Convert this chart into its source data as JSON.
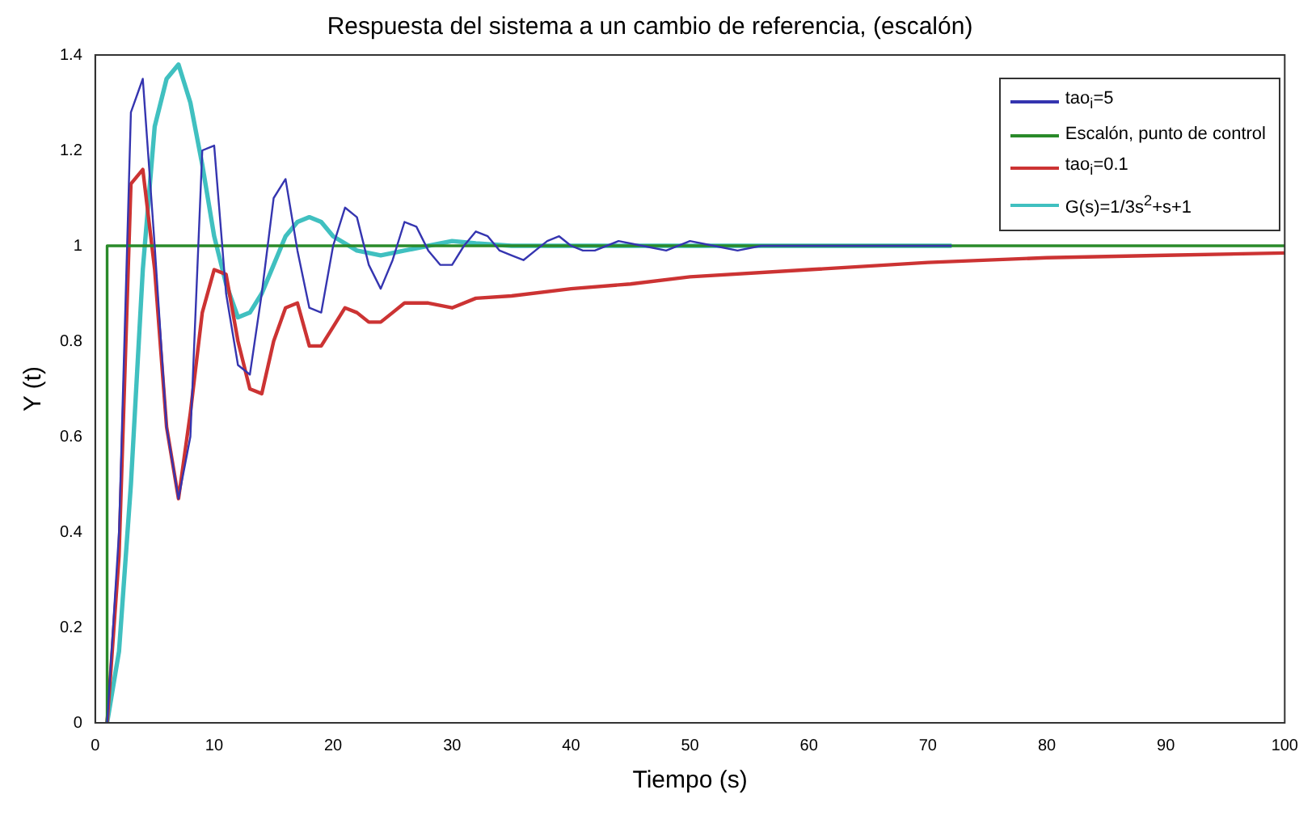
{
  "chart_data": {
    "type": "line",
    "title": "Respuesta del sistema a un cambio de referencia, (escalón)",
    "xlabel": "Tiempo (s)",
    "ylabel": "Y (t)",
    "xlim": [
      0,
      100
    ],
    "xticks": [
      0,
      10,
      20,
      30,
      40,
      50,
      60,
      70,
      80,
      90,
      100
    ],
    "ylim": [
      0,
      1.4
    ],
    "yticks": [
      0,
      0.2,
      0.4,
      0.6,
      0.8,
      1,
      1.2,
      1.4
    ],
    "grid": false,
    "legend": "top right",
    "marker": "none",
    "line_style": "solid",
    "series": [
      {
        "name": "tao$_{i}$=5",
        "color": "#3535b0",
        "x": [
          1,
          2,
          3,
          4,
          5,
          6,
          7,
          8,
          9,
          10,
          11,
          12,
          13,
          14,
          15,
          16,
          17,
          18,
          19,
          20,
          21,
          22,
          23,
          24,
          25,
          26,
          27,
          28,
          29,
          30,
          31,
          32,
          33,
          34,
          35,
          36,
          37,
          38,
          39,
          40,
          41,
          42,
          44,
          46,
          48,
          50,
          52,
          54,
          56,
          58,
          60,
          62,
          64,
          66,
          68,
          70,
          72
        ],
        "values": [
          0,
          0.4,
          1.28,
          1.35,
          1.0,
          0.62,
          0.47,
          0.6,
          1.2,
          1.21,
          0.9,
          0.75,
          0.73,
          0.9,
          1.1,
          1.14,
          0.99,
          0.87,
          0.86,
          1.0,
          1.08,
          1.06,
          0.96,
          0.91,
          0.97,
          1.05,
          1.04,
          0.99,
          0.96,
          0.96,
          1.0,
          1.03,
          1.02,
          0.99,
          0.98,
          0.97,
          0.99,
          1.01,
          1.02,
          1.0,
          0.99,
          0.99,
          1.01,
          1.0,
          0.99,
          1.01,
          1.0,
          0.99,
          1.0,
          1.0,
          1.0,
          1.0,
          1.0,
          1.0,
          1.0,
          1.0,
          1.0
        ]
      },
      {
        "name": "Escalón, punto de control",
        "color": "#2a8a2a",
        "x": [
          1,
          1,
          100
        ],
        "values": [
          0,
          1,
          1
        ]
      },
      {
        "name": "tao$_{i}$=0.1",
        "color": "#cc3333",
        "x": [
          1,
          2,
          3,
          4,
          5,
          6,
          7,
          8,
          9,
          10,
          11,
          12,
          13,
          14,
          15,
          16,
          17,
          18,
          19,
          20,
          21,
          22,
          23,
          24,
          25,
          26,
          28,
          30,
          32,
          35,
          40,
          45,
          50,
          60,
          70,
          80,
          90,
          100
        ],
        "values": [
          0,
          0.35,
          1.13,
          1.16,
          0.95,
          0.62,
          0.47,
          0.65,
          0.86,
          0.95,
          0.94,
          0.8,
          0.7,
          0.69,
          0.8,
          0.87,
          0.88,
          0.79,
          0.79,
          0.83,
          0.87,
          0.86,
          0.84,
          0.84,
          0.86,
          0.88,
          0.88,
          0.87,
          0.89,
          0.895,
          0.91,
          0.92,
          0.935,
          0.95,
          0.965,
          0.975,
          0.98,
          0.985
        ]
      },
      {
        "name": "G(s)=1/3s$^{2}$+s+1",
        "color": "#40c0c0",
        "x": [
          1,
          2,
          3,
          4,
          5,
          6,
          7,
          8,
          9,
          10,
          11,
          12,
          13,
          14,
          15,
          16,
          17,
          18,
          19,
          20,
          22,
          24,
          26,
          28,
          30,
          32,
          35,
          40,
          50,
          60,
          72
        ],
        "values": [
          0,
          0.15,
          0.5,
          0.95,
          1.25,
          1.35,
          1.38,
          1.3,
          1.17,
          1.02,
          0.92,
          0.85,
          0.86,
          0.9,
          0.96,
          1.02,
          1.05,
          1.06,
          1.05,
          1.02,
          0.99,
          0.98,
          0.99,
          1.0,
          1.01,
          1.005,
          1.0,
          1.0,
          1.0,
          1.0,
          1.0
        ]
      }
    ]
  }
}
